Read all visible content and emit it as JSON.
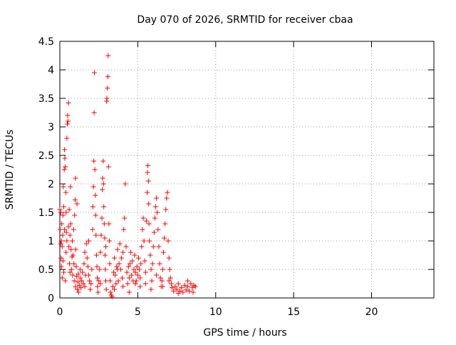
{
  "chart_data": {
    "type": "scatter",
    "title": "Day 070 of 2026, SRMTID for receiver cbaa",
    "xlabel": "GPS time / hours",
    "ylabel": "SRMTID / TECUs",
    "xlim": [
      0,
      24
    ],
    "ylim": [
      0,
      4.5
    ],
    "x_ticks": [
      0,
      5,
      10,
      15,
      20
    ],
    "y_ticks": [
      0,
      0.5,
      1,
      1.5,
      2,
      2.5,
      3,
      3.5,
      4,
      4.5
    ],
    "x_tick_labels": [
      "0",
      "5",
      "10",
      "15",
      "20"
    ],
    "y_tick_labels": [
      "0",
      "0.5",
      "1",
      "1.5",
      "2",
      "2.5",
      "3",
      "3.5",
      "4",
      "4.5"
    ],
    "grid": true,
    "marker": "+",
    "color": "#ff0000",
    "series": [
      {
        "points": [
          [
            0.0,
            1.55
          ],
          [
            0.02,
            1.2
          ],
          [
            0.05,
            0.95
          ],
          [
            0.05,
            1.5
          ],
          [
            0.08,
            0.7
          ],
          [
            0.1,
            0.55
          ],
          [
            0.1,
            1.0
          ],
          [
            0.12,
            1.3
          ],
          [
            0.15,
            0.9
          ],
          [
            0.18,
            1.1
          ],
          [
            0.2,
            0.65
          ],
          [
            0.2,
            1.45
          ],
          [
            0.22,
            1.95
          ],
          [
            0.25,
            1.6
          ],
          [
            0.25,
            0.45
          ],
          [
            0.28,
            2.25
          ],
          [
            0.3,
            2.6
          ],
          [
            0.3,
            1.2
          ],
          [
            0.32,
            2.45
          ],
          [
            0.35,
            2.3
          ],
          [
            0.35,
            0.3
          ],
          [
            0.38,
            1.85
          ],
          [
            0.4,
            1.5
          ],
          [
            0.42,
            1.15
          ],
          [
            0.45,
            2.8
          ],
          [
            0.45,
            1.0
          ],
          [
            0.48,
            3.05
          ],
          [
            0.5,
            3.2
          ],
          [
            0.52,
            3.1
          ],
          [
            0.55,
            3.42
          ],
          [
            0.55,
            1.25
          ],
          [
            0.58,
            0.9
          ],
          [
            0.6,
            1.55
          ],
          [
            0.62,
            0.6
          ],
          [
            0.65,
            1.1
          ],
          [
            0.68,
            1.95
          ],
          [
            0.7,
            1.3
          ],
          [
            0.72,
            0.85
          ],
          [
            0.75,
            0.5
          ],
          [
            0.78,
            0.72
          ],
          [
            0.8,
            1.0
          ],
          [
            0.82,
            0.4
          ],
          [
            0.85,
            0.75
          ],
          [
            0.88,
            1.2
          ],
          [
            0.9,
            0.6
          ],
          [
            0.92,
            0.3
          ],
          [
            0.95,
            1.45
          ],
          [
            0.98,
            1.72
          ],
          [
            1.0,
            2.1
          ],
          [
            1.0,
            0.2
          ],
          [
            1.02,
            0.85
          ],
          [
            1.05,
            0.55
          ],
          [
            1.08,
            0.38
          ],
          [
            1.1,
            1.65
          ],
          [
            1.12,
            0.15
          ],
          [
            1.15,
            0.28
          ],
          [
            1.18,
            0.42
          ],
          [
            1.2,
            0.1
          ],
          [
            1.25,
            0.22
          ],
          [
            1.3,
            0.35
          ],
          [
            1.35,
            0.18
          ],
          [
            1.4,
            0.3
          ],
          [
            1.45,
            0.45
          ],
          [
            1.5,
            0.25
          ],
          [
            1.55,
            0.6
          ],
          [
            1.6,
            0.8
          ],
          [
            1.65,
            0.4
          ],
          [
            1.7,
            0.95
          ],
          [
            1.75,
            0.7
          ],
          [
            1.8,
            0.55
          ],
          [
            1.85,
            1.0
          ],
          [
            1.9,
            0.3
          ],
          [
            1.95,
            0.15
          ],
          [
            2.0,
            0.25
          ],
          [
            2.05,
            0.5
          ],
          [
            2.1,
            1.2
          ],
          [
            2.12,
            1.6
          ],
          [
            2.15,
            1.95
          ],
          [
            2.18,
            2.4
          ],
          [
            2.2,
            3.25
          ],
          [
            2.22,
            3.95
          ],
          [
            2.25,
            2.25
          ],
          [
            2.28,
            1.8
          ],
          [
            2.3,
            1.45
          ],
          [
            2.32,
            1.1
          ],
          [
            2.35,
            0.75
          ],
          [
            2.38,
            0.55
          ],
          [
            2.4,
            0.35
          ],
          [
            2.42,
            0.2
          ],
          [
            2.45,
            0.1
          ],
          [
            2.5,
            0.3
          ],
          [
            2.55,
            0.5
          ],
          [
            2.6,
            0.8
          ],
          [
            2.65,
            1.1
          ],
          [
            2.7,
            1.4
          ],
          [
            2.72,
            1.9
          ],
          [
            2.75,
            2.1
          ],
          [
            2.78,
            2.4
          ],
          [
            2.8,
            2.0
          ],
          [
            2.82,
            1.6
          ],
          [
            2.85,
            1.3
          ],
          [
            2.88,
            1.05
          ],
          [
            2.9,
            0.75
          ],
          [
            2.92,
            0.5
          ],
          [
            2.95,
            0.3
          ],
          [
            2.98,
            0.15
          ],
          [
            3.0,
            3.45
          ],
          [
            3.02,
            3.5
          ],
          [
            3.05,
            3.68
          ],
          [
            3.08,
            3.88
          ],
          [
            3.1,
            4.25
          ],
          [
            3.12,
            2.3
          ],
          [
            3.15,
            1.3
          ],
          [
            3.18,
            1.0
          ],
          [
            3.2,
            0.6
          ],
          [
            3.22,
            0.3
          ],
          [
            3.25,
            0.1
          ],
          [
            3.3,
            0.05
          ],
          [
            3.35,
            0.02
          ],
          [
            3.4,
            0.2
          ],
          [
            3.45,
            0.45
          ],
          [
            3.5,
            0.7
          ],
          [
            3.55,
            0.4
          ],
          [
            3.6,
            0.25
          ],
          [
            3.65,
            0.55
          ],
          [
            3.7,
            0.85
          ],
          [
            3.75,
            0.3
          ],
          [
            3.8,
            0.6
          ],
          [
            3.85,
            0.95
          ],
          [
            3.9,
            0.5
          ],
          [
            3.95,
            0.7
          ],
          [
            4.0,
            0.35
          ],
          [
            4.05,
            0.8
          ],
          [
            4.1,
            1.2
          ],
          [
            4.15,
            1.4
          ],
          [
            4.2,
            2.0
          ],
          [
            4.25,
            0.9
          ],
          [
            4.3,
            0.45
          ],
          [
            4.35,
            0.25
          ],
          [
            4.4,
            0.55
          ],
          [
            4.45,
            0.35
          ],
          [
            4.5,
            0.6
          ],
          [
            4.55,
            0.8
          ],
          [
            4.6,
            0.4
          ],
          [
            4.65,
            0.65
          ],
          [
            4.7,
            0.3
          ],
          [
            4.75,
            0.5
          ],
          [
            4.8,
            0.75
          ],
          [
            4.85,
            0.45
          ],
          [
            4.9,
            0.3
          ],
          [
            4.95,
            0.55
          ],
          [
            5.0,
            0.4
          ],
          [
            5.05,
            0.7
          ],
          [
            5.1,
            0.5
          ],
          [
            5.15,
            0.35
          ],
          [
            5.2,
            0.6
          ],
          [
            5.25,
            0.9
          ],
          [
            5.3,
            1.2
          ],
          [
            5.35,
            1.4
          ],
          [
            5.4,
            1.0
          ],
          [
            5.45,
            0.65
          ],
          [
            5.5,
            0.45
          ],
          [
            5.55,
            1.35
          ],
          [
            5.6,
            1.85
          ],
          [
            5.62,
            2.2
          ],
          [
            5.65,
            2.32
          ],
          [
            5.68,
            2.05
          ],
          [
            5.7,
            1.65
          ],
          [
            5.72,
            1.3
          ],
          [
            5.75,
            1.0
          ],
          [
            5.8,
            0.75
          ],
          [
            5.85,
            0.5
          ],
          [
            5.9,
            0.3
          ],
          [
            5.95,
            0.6
          ],
          [
            6.0,
            0.9
          ],
          [
            6.05,
            1.15
          ],
          [
            6.1,
            1.4
          ],
          [
            6.15,
            1.6
          ],
          [
            6.2,
            1.75
          ],
          [
            6.25,
            1.5
          ],
          [
            6.3,
            1.2
          ],
          [
            6.35,
            0.9
          ],
          [
            6.4,
            0.6
          ],
          [
            6.45,
            0.35
          ],
          [
            6.5,
            0.2
          ],
          [
            6.55,
            0.3
          ],
          [
            6.6,
            0.5
          ],
          [
            6.65,
            0.8
          ],
          [
            6.7,
            1.05
          ],
          [
            6.75,
            1.3
          ],
          [
            6.8,
            1.55
          ],
          [
            6.85,
            1.75
          ],
          [
            6.9,
            1.85
          ],
          [
            6.95,
            1.0
          ],
          [
            7.0,
            0.7
          ],
          [
            7.05,
            0.5
          ],
          [
            7.1,
            0.35
          ],
          [
            7.15,
            0.25
          ],
          [
            7.2,
            0.18
          ],
          [
            7.3,
            0.12
          ],
          [
            7.4,
            0.2
          ],
          [
            7.5,
            0.15
          ],
          [
            7.6,
            0.25
          ],
          [
            7.7,
            0.12
          ],
          [
            7.8,
            0.18
          ],
          [
            7.9,
            0.1
          ],
          [
            8.0,
            0.22
          ],
          [
            8.1,
            0.14
          ],
          [
            8.2,
            0.2
          ],
          [
            8.3,
            0.12
          ],
          [
            8.4,
            0.25
          ],
          [
            8.5,
            0.18
          ],
          [
            8.6,
            0.22
          ],
          [
            8.7,
            0.2
          ],
          [
            0.15,
            0.35
          ],
          [
            0.4,
            0.8
          ],
          [
            0.65,
            0.45
          ],
          [
            1.3,
            0.5
          ],
          [
            1.6,
            0.2
          ],
          [
            1.85,
            0.4
          ],
          [
            2.6,
            0.25
          ],
          [
            2.95,
            0.9
          ],
          [
            3.5,
            0.15
          ],
          [
            3.7,
            0.5
          ],
          [
            4.05,
            0.2
          ],
          [
            4.45,
            0.1
          ],
          [
            4.85,
            0.25
          ],
          [
            5.15,
            0.2
          ],
          [
            5.5,
            0.25
          ],
          [
            5.85,
            0.15
          ],
          [
            6.2,
            0.4
          ],
          [
            6.6,
            0.2
          ],
          [
            7.0,
            0.3
          ],
          [
            7.6,
            0.08
          ],
          [
            8.2,
            0.3
          ],
          [
            8.55,
            0.1
          ]
        ]
      }
    ]
  }
}
